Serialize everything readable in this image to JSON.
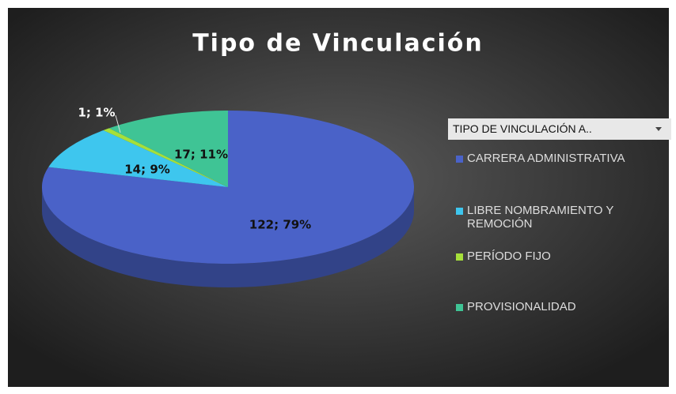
{
  "chart_data": {
    "type": "pie",
    "title": "Tipo de Vinculación",
    "legend_filter": "TIPO DE VINCULACIÓN A..",
    "categories": [
      "CARRERA ADMINISTRATIVA",
      "LIBRE NOMBRAMIENTO Y REMOCIÓN",
      "PERÍODO FIJO",
      "PROVISIONALIDAD"
    ],
    "values": [
      122,
      14,
      1,
      17
    ],
    "value_labels": [
      "122; 79%",
      "14; 9%",
      "1; 1%",
      "17; 11%"
    ],
    "colors": [
      "#4a62c8",
      "#3ec6ee",
      "#a6e03a",
      "#3fc495"
    ],
    "legend": "right"
  }
}
